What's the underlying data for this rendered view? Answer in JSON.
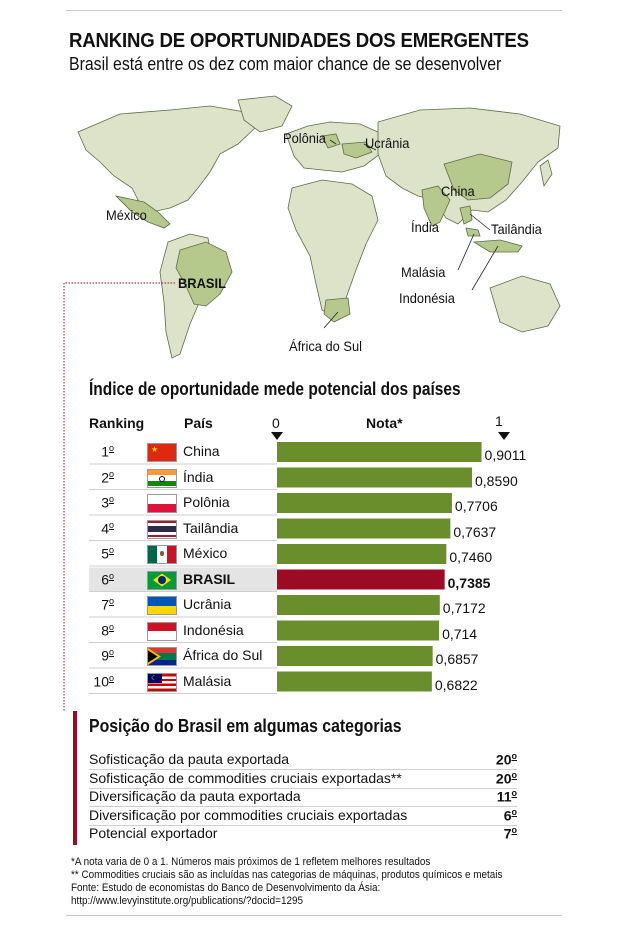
{
  "title": "RANKING DE OPORTUNIDADES DOS EMERGENTES",
  "subtitle": "Brasil está entre os dez com maior chance de se desenvolver",
  "map": {
    "labels": [
      "Polônia",
      "Ucrânia",
      "China",
      "México",
      "Índia",
      "Tailândia",
      "BRASIL",
      "Malásia",
      "Indonésia",
      "África do Sul"
    ]
  },
  "chart_data": {
    "type": "bar",
    "title": "Índice de oportunidade mede potencial dos países",
    "headers": {
      "ranking": "Ranking",
      "country": "País",
      "score": "Nota*"
    },
    "axis": {
      "min_label": "0",
      "max_label": "1"
    },
    "xlim": [
      0,
      1
    ],
    "rows": [
      {
        "rank": "1",
        "country": "China",
        "value": 0.9011,
        "label": "0,9011",
        "highlight": false
      },
      {
        "rank": "2",
        "country": "Índia",
        "value": 0.859,
        "label": "0,8590",
        "highlight": false
      },
      {
        "rank": "3",
        "country": "Polônia",
        "value": 0.7706,
        "label": "0,7706",
        "highlight": false
      },
      {
        "rank": "4",
        "country": "Tailândia",
        "value": 0.7637,
        "label": "0,7637",
        "highlight": false
      },
      {
        "rank": "5",
        "country": "México",
        "value": 0.746,
        "label": "0,7460",
        "highlight": false
      },
      {
        "rank": "6",
        "country": "BRASIL",
        "value": 0.7385,
        "label": "0,7385",
        "highlight": true
      },
      {
        "rank": "7",
        "country": "Ucrânia",
        "value": 0.7172,
        "label": "0,7172",
        "highlight": false
      },
      {
        "rank": "8",
        "country": "Indonésia",
        "value": 0.714,
        "label": "0,714",
        "highlight": false
      },
      {
        "rank": "9",
        "country": "África do Sul",
        "value": 0.6857,
        "label": "0,6857",
        "highlight": false
      },
      {
        "rank": "10",
        "country": "Malásia",
        "value": 0.6822,
        "label": "0,6822",
        "highlight": false
      }
    ],
    "colors": {
      "bar": "#6a8e2b",
      "highlight_bar": "#9c0a24",
      "map_highlight": "#b5c98c",
      "map_land": "#dde3c8"
    }
  },
  "ordinal_suffix": "o",
  "categories": {
    "title": "Posição do Brasil em algumas categorias",
    "items": [
      {
        "label": "Sofisticação da pauta exportada",
        "position": "20"
      },
      {
        "label": "Sofisticação de commodities cruciais exportadas**",
        "position": "20"
      },
      {
        "label": "Diversificação da pauta exportada",
        "position": "11"
      },
      {
        "label": "Diversificação por commodities cruciais exportadas",
        "position": "6"
      },
      {
        "label": "Potencial exportador",
        "position": "7"
      }
    ]
  },
  "notes": [
    "*A nota varia de 0 a 1. Números mais próximos de 1 refletem melhores resultados",
    "** Commodities cruciais são as incluídas nas categorias de máquinas, produtos químicos e metais",
    "Fonte: Estudo de economistas do Banco de Desenvolvimento da Ásia:",
    "http://www.levyinstitute.org/publications/?docid=1295"
  ]
}
